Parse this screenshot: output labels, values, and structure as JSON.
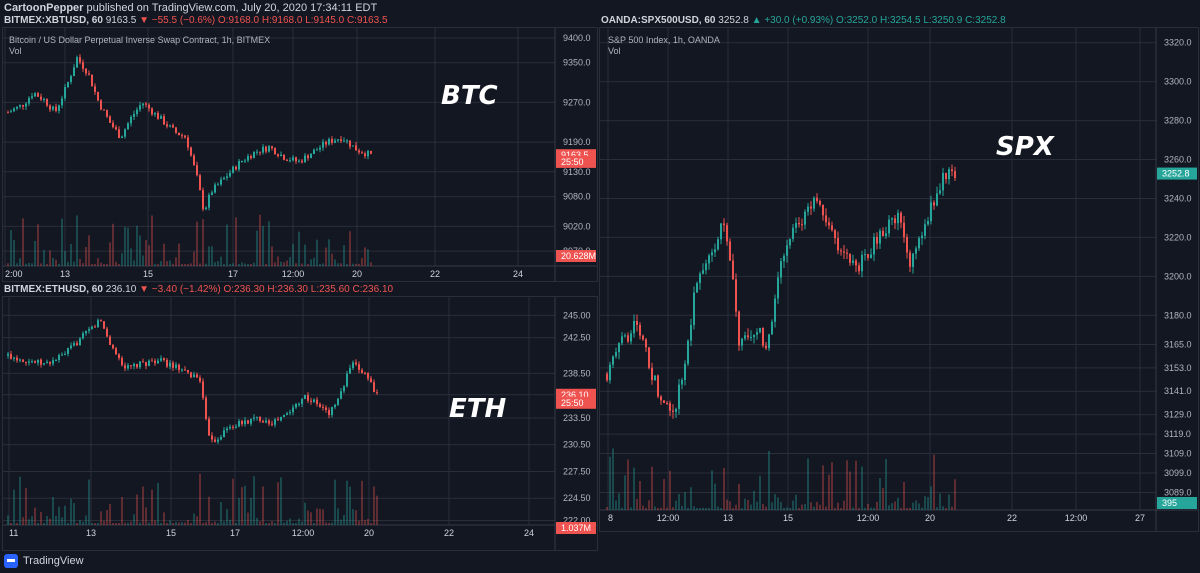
{
  "header": {
    "author": "CartoonPepper",
    "published_text": "published on TradingView.com, July 20, 2020 17:34:11 EDT"
  },
  "footer": {
    "brand": "TradingView"
  },
  "colors": {
    "up": "#26a69a",
    "down": "#ef5350",
    "background": "#131722",
    "grid": "#2a2e39"
  },
  "panels": {
    "btc": {
      "legend": {
        "symbol": "BITMEX:XBTUSD, 60",
        "last": "9163.5",
        "change": "▼ −55.5 (−0.6%)",
        "o": "O:9168.0",
        "h": "H:9168.0",
        "l": "L:9145.0",
        "c": "C:9163.5"
      },
      "title": "Bitcoin / US Dollar Perpetual Inverse Swap Contract, 1h, BITMEX",
      "vol_label": "Vol",
      "ticker": "BTC",
      "price_tag": "9163.5",
      "time_tag": "25:50",
      "vol_tag": "20.628M"
    },
    "eth": {
      "legend": {
        "symbol": "BITMEX:ETHUSD, 60",
        "last": "236.10",
        "change": "▼ −3.40 (−1.42%)",
        "o": "O:236.30",
        "h": "H:236.30",
        "l": "L:235.60",
        "c": "C:236.10"
      },
      "ticker": "ETH",
      "price_tag": "236.10",
      "time_tag": "25:50",
      "vol_tag": "1.037M"
    },
    "spx": {
      "legend": {
        "symbol": "OANDA:SPX500USD, 60",
        "last": "3252.8",
        "change": "▲ +30.0 (+0.93%)",
        "o": "O:3252.0",
        "h": "H:3254.5",
        "l": "L:3250.9",
        "c": "C:3252.8"
      },
      "title": "S&P 500 Index, 1h, OANDA",
      "vol_label": "Vol",
      "ticker": "SPX",
      "price_tag": "3252.8",
      "vol_tag": "395"
    }
  },
  "chart_data": [
    {
      "type": "candlestick",
      "title": "Bitcoin / US Dollar Perpetual Inverse Swap Contract, 1h, BITMEX",
      "x_ticks": [
        "2:00",
        "13",
        "15",
        "17",
        "12:00",
        "20",
        "22",
        "24"
      ],
      "y_ticks": [
        9400.0,
        9350.0,
        9270.0,
        9190.0,
        9130.0,
        9080.0,
        9020.0,
        8970.0
      ],
      "ylim": [
        8940,
        9410
      ],
      "series": [
        {
          "name": "XBTUSD",
          "approx_close_path": [
            [
              0,
              9250
            ],
            [
              0.04,
              9265
            ],
            [
              0.07,
              9290
            ],
            [
              0.1,
              9275
            ],
            [
              0.13,
              9250
            ],
            [
              0.16,
              9300
            ],
            [
              0.19,
              9360
            ],
            [
              0.22,
              9330
            ],
            [
              0.25,
              9270
            ],
            [
              0.28,
              9230
            ],
            [
              0.31,
              9200
            ],
            [
              0.34,
              9240
            ],
            [
              0.37,
              9270
            ],
            [
              0.4,
              9250
            ],
            [
              0.43,
              9230
            ],
            [
              0.46,
              9210
            ],
            [
              0.49,
              9200
            ],
            [
              0.52,
              9120
            ],
            [
              0.54,
              9050
            ],
            [
              0.56,
              9090
            ],
            [
              0.6,
              9120
            ],
            [
              0.64,
              9150
            ],
            [
              0.68,
              9170
            ],
            [
              0.72,
              9180
            ],
            [
              0.76,
              9160
            ],
            [
              0.8,
              9150
            ],
            [
              0.84,
              9170
            ],
            [
              0.88,
              9190
            ],
            [
              0.92,
              9200
            ],
            [
              0.96,
              9175
            ],
            [
              1.0,
              9163.5
            ]
          ]
        }
      ],
      "volume": {
        "label": "Vol",
        "last": "20.628M"
      }
    },
    {
      "type": "candlestick",
      "title": "BITMEX:ETHUSD, 60",
      "x_ticks": [
        "11",
        "13",
        "15",
        "17",
        "12:00",
        "20",
        "22",
        "24"
      ],
      "y_ticks": [
        245.0,
        242.5,
        238.5,
        236.1,
        233.5,
        230.5,
        227.5,
        224.5,
        222.0
      ],
      "ylim": [
        221.5,
        246.5
      ],
      "series": [
        {
          "name": "ETHUSD",
          "approx_close_path": [
            [
              0,
              240.5
            ],
            [
              0.05,
              240.0
            ],
            [
              0.1,
              239.5
            ],
            [
              0.15,
              240.5
            ],
            [
              0.2,
              242.5
            ],
            [
              0.25,
              244.5
            ],
            [
              0.28,
              241.5
            ],
            [
              0.32,
              239.0
            ],
            [
              0.36,
              239.5
            ],
            [
              0.4,
              240.0
            ],
            [
              0.44,
              239.5
            ],
            [
              0.48,
              238.5
            ],
            [
              0.52,
              238.0
            ],
            [
              0.54,
              232.0
            ],
            [
              0.56,
              231.0
            ],
            [
              0.6,
              232.5
            ],
            [
              0.64,
              233.0
            ],
            [
              0.68,
              233.5
            ],
            [
              0.72,
              233.0
            ],
            [
              0.76,
              234.0
            ],
            [
              0.8,
              236.0
            ],
            [
              0.84,
              235.0
            ],
            [
              0.87,
              234.0
            ],
            [
              0.9,
              236.0
            ],
            [
              0.93,
              239.5
            ],
            [
              0.97,
              238.5
            ],
            [
              1.0,
              236.1
            ]
          ]
        }
      ],
      "volume": {
        "label": "Vol",
        "last": "1.037M"
      }
    },
    {
      "type": "candlestick",
      "title": "S&P 500 Index, 1h, OANDA",
      "x_ticks": [
        "8",
        "12:00",
        "13",
        "15",
        "12:00",
        "20",
        "22",
        "12:00",
        "27"
      ],
      "y_ticks": [
        3320.0,
        3300.0,
        3280.0,
        3260.0,
        3240.0,
        3220.0,
        3200.0,
        3180.0,
        3165.0,
        3153.0,
        3141.0,
        3129.0,
        3119.0,
        3109.0,
        3099.0,
        3089.0
      ],
      "ylim": [
        3080,
        3325
      ],
      "series": [
        {
          "name": "SPX500USD",
          "approx_close_path": [
            [
              0,
              3150
            ],
            [
              0.04,
              3165
            ],
            [
              0.08,
              3175
            ],
            [
              0.1,
              3168
            ],
            [
              0.13,
              3150
            ],
            [
              0.16,
              3135
            ],
            [
              0.19,
              3130
            ],
            [
              0.22,
              3150
            ],
            [
              0.25,
              3190
            ],
            [
              0.28,
              3205
            ],
            [
              0.31,
              3215
            ],
            [
              0.33,
              3230
            ],
            [
              0.36,
              3200
            ],
            [
              0.38,
              3165
            ],
            [
              0.41,
              3168
            ],
            [
              0.44,
              3172
            ],
            [
              0.46,
              3160
            ],
            [
              0.48,
              3185
            ],
            [
              0.51,
              3215
            ],
            [
              0.54,
              3225
            ],
            [
              0.57,
              3230
            ],
            [
              0.6,
              3242
            ],
            [
              0.64,
              3225
            ],
            [
              0.68,
              3210
            ],
            [
              0.72,
              3205
            ],
            [
              0.76,
              3215
            ],
            [
              0.8,
              3225
            ],
            [
              0.84,
              3230
            ],
            [
              0.87,
              3205
            ],
            [
              0.9,
              3220
            ],
            [
              0.94,
              3240
            ],
            [
              0.97,
              3252
            ],
            [
              1.0,
              3252.8
            ]
          ]
        }
      ],
      "volume": {
        "label": "Vol",
        "last": "395"
      }
    }
  ]
}
